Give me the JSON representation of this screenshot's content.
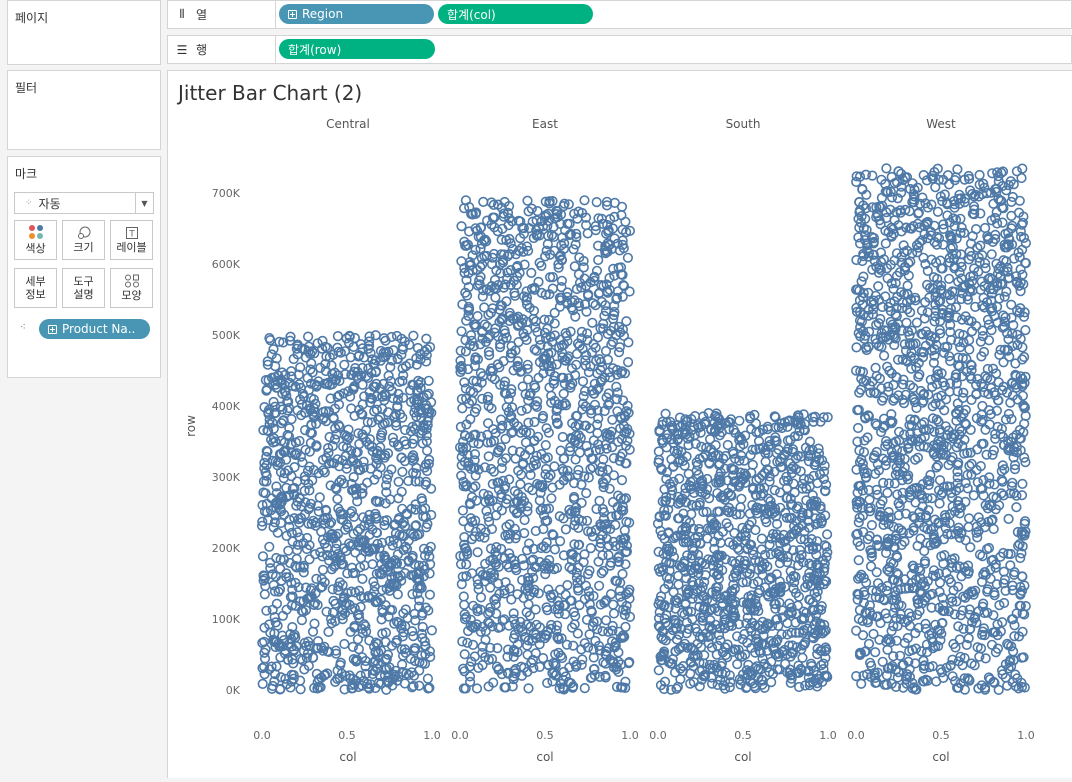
{
  "left": {
    "pages": {
      "title": "페이지"
    },
    "filters": {
      "title": "필터"
    },
    "marks": {
      "title": "마크",
      "type_select": "자동",
      "buttons": [
        {
          "label": "색상",
          "icon": "color-dots-icon"
        },
        {
          "label": "크기",
          "icon": "size-icon"
        },
        {
          "label": "레이블",
          "icon": "label-icon"
        },
        {
          "label": "세부\n정보",
          "icon": ""
        },
        {
          "label": "도구\n설명",
          "icon": ""
        },
        {
          "label": "모양",
          "icon": "shape-icon"
        }
      ],
      "detail_pill": "Product Na.."
    }
  },
  "shelves": {
    "columns": {
      "label": "열",
      "pills": [
        "Region",
        "합계(col)"
      ]
    },
    "rows": {
      "label": "행",
      "pills": [
        "합계(row)"
      ]
    }
  },
  "colors": {
    "dimension_pill": "#4896b4",
    "measure_pill": "#00b181",
    "mark": "#4e79a7"
  },
  "chart_data": {
    "type": "scatter",
    "title": "Jitter Bar Chart (2)",
    "panes": [
      "Central",
      "East",
      "South",
      "West"
    ],
    "ylabel": "row",
    "xlabel": "col",
    "ylim": [
      0,
      750000
    ],
    "yticks": [
      0,
      100000,
      200000,
      300000,
      400000,
      500000,
      600000,
      700000
    ],
    "ytick_labels": [
      "0K",
      "100K",
      "200K",
      "300K",
      "400K",
      "500K",
      "600K",
      "700K"
    ],
    "xlim": [
      0,
      1
    ],
    "xticks": [
      0,
      0.5,
      1
    ],
    "xtick_labels": [
      "0.0",
      "0.5",
      "1.0"
    ],
    "series": [
      {
        "region": "Central",
        "max_row": 500000,
        "n_points": 1200
      },
      {
        "region": "East",
        "max_row": 690000,
        "n_points": 1400
      },
      {
        "region": "South",
        "max_row": 390000,
        "n_points": 1150
      },
      {
        "region": "West",
        "max_row": 735000,
        "n_points": 1600
      }
    ],
    "marker": "open-circle"
  }
}
